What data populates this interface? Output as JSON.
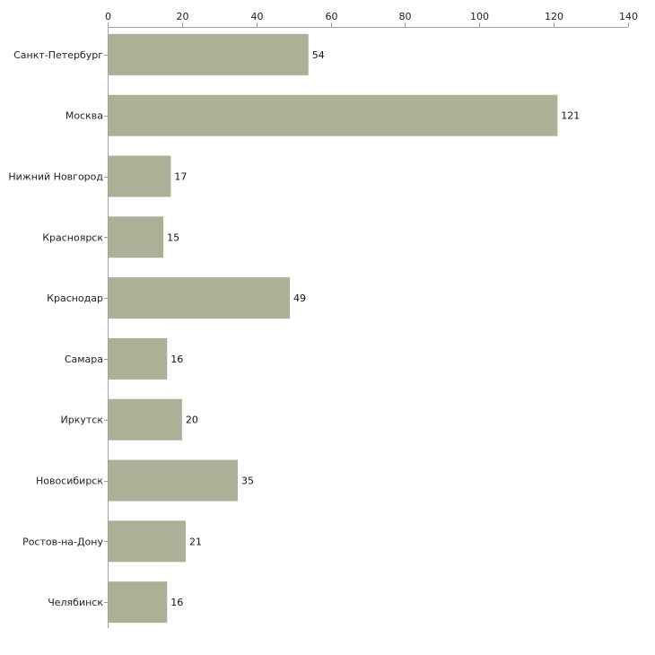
{
  "chart_data": {
    "type": "bar",
    "orientation": "horizontal",
    "title": "",
    "xlabel": "",
    "ylabel": "",
    "xlim": [
      0,
      140
    ],
    "xticks": [
      0,
      20,
      40,
      60,
      80,
      100,
      120,
      140
    ],
    "x_axis_position": "top",
    "grid": false,
    "categories": [
      "Санкт-Петербург",
      "Москва",
      "Нижний Новгород",
      "Красноярск",
      "Краснодар",
      "Самара",
      "Иркутск",
      "Новосибирск",
      "Ростов-на-Дону",
      "Челябинск"
    ],
    "values": [
      54,
      121,
      17,
      15,
      49,
      16,
      20,
      35,
      21,
      16
    ],
    "bar_color": "#abb096",
    "axis_color": "#a0a0a0"
  }
}
